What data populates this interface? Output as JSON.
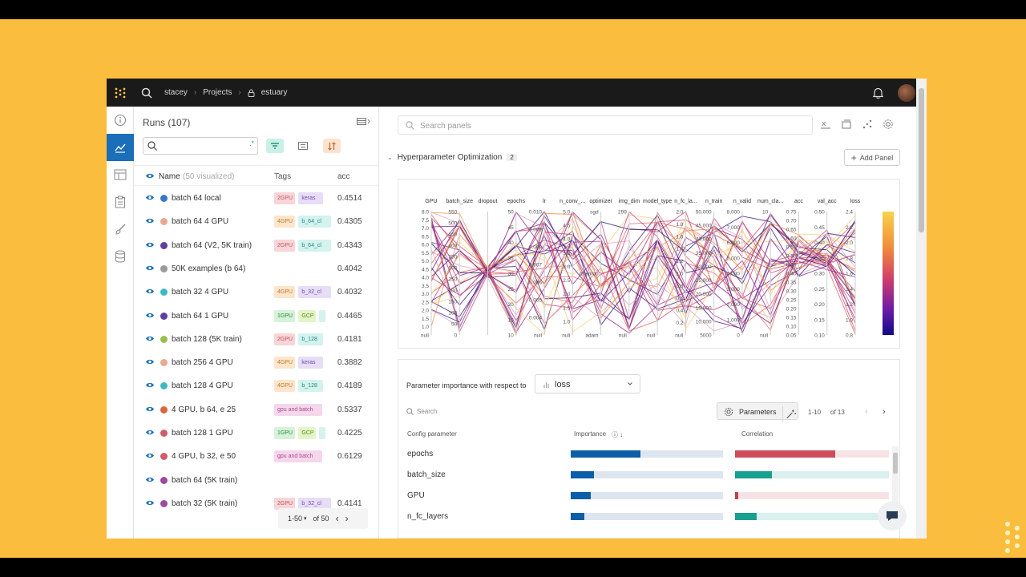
{
  "nav": {
    "crumbs": [
      "stacey",
      "Projects",
      "estuary"
    ],
    "logo_icon": "wandb-dots-icon",
    "accent": "#1b6fb8"
  },
  "sidebar": {
    "items": [
      {
        "icon": "info-icon",
        "active": false
      },
      {
        "icon": "line-chart-icon",
        "active": true
      },
      {
        "icon": "table-icon",
        "active": false
      },
      {
        "icon": "clipboard-icon",
        "active": false
      },
      {
        "icon": "brush-icon",
        "active": false
      },
      {
        "icon": "database-icon",
        "active": false
      }
    ]
  },
  "runs": {
    "title": "Runs (107)",
    "search_placeholder": "",
    "regex_label": ".*",
    "columns": {
      "name": "Name",
      "visualized": "(50 visualized)",
      "tags": "Tags",
      "acc": "acc"
    },
    "rows": [
      {
        "name": "batch 64 local",
        "color": "#3a78c4",
        "tags": [
          {
            "t": "2GPU",
            "bg": "#f7d5d8",
            "fg": "#c05663"
          },
          {
            "t": "keras",
            "bg": "#e7ddf5",
            "fg": "#6f4bb0"
          }
        ],
        "acc": "0.4514"
      },
      {
        "name": "batch 64 4 GPU",
        "color": "#e8a98f",
        "tags": [
          {
            "t": "4GPU",
            "bg": "#fde5cc",
            "fg": "#c07a2a"
          },
          {
            "t": "b_64_cl",
            "bg": "#d4f2ee",
            "fg": "#1c8c7c"
          }
        ],
        "acc": "0.4305"
      },
      {
        "name": "batch 64 (V2, 5K train)",
        "color": "#5e3f9c",
        "tags": [
          {
            "t": "2GPU",
            "bg": "#f7d5d8",
            "fg": "#c05663"
          },
          {
            "t": "b_64_cl",
            "bg": "#d4f2ee",
            "fg": "#1c8c7c"
          }
        ],
        "acc": "0.4343"
      },
      {
        "name": "50K examples (b 64)",
        "color": "#9a9a9a",
        "tags": [],
        "acc": "0.4042"
      },
      {
        "name": "batch 32 4 GPU",
        "color": "#3db9c4",
        "tags": [
          {
            "t": "4GPU",
            "bg": "#fde5cc",
            "fg": "#c07a2a"
          },
          {
            "t": "b_32_cl",
            "bg": "#e7ddf5",
            "fg": "#6f4bb0"
          }
        ],
        "acc": "0.4032"
      },
      {
        "name": "batch 64 1 GPU",
        "color": "#5e3f9c",
        "tags": [
          {
            "t": "1GPU",
            "bg": "#d6f2d9",
            "fg": "#2f8a3b"
          },
          {
            "t": "GCP",
            "bg": "#e3f5c8",
            "fg": "#5e8a1f"
          },
          {
            "t": "",
            "bg": "#d4f2ee",
            "fg": "#1c8c7c"
          }
        ],
        "acc": "0.4465"
      },
      {
        "name": "batch 128 (5K train)",
        "color": "#97c050",
        "tags": [
          {
            "t": "2GPU",
            "bg": "#f7d5d8",
            "fg": "#c05663"
          },
          {
            "t": "b_128",
            "bg": "#d4f2ee",
            "fg": "#1c8c7c"
          }
        ],
        "acc": "0.4181"
      },
      {
        "name": "batch 256 4 GPU",
        "color": "#e8a98f",
        "tags": [
          {
            "t": "4GPU",
            "bg": "#fde5cc",
            "fg": "#c07a2a"
          },
          {
            "t": "keras",
            "bg": "#e7ddf5",
            "fg": "#6f4bb0"
          }
        ],
        "acc": "0.3882"
      },
      {
        "name": "batch 128 4 GPU",
        "color": "#3db9c4",
        "tags": [
          {
            "t": "4GPU",
            "bg": "#fde5cc",
            "fg": "#c07a2a"
          },
          {
            "t": "b_128",
            "bg": "#d4f2ee",
            "fg": "#1c8c7c"
          }
        ],
        "acc": "0.4189"
      },
      {
        "name": "4 GPU, b 64, e 25",
        "color": "#d9653b",
        "tags": [
          {
            "t": "gpu and batch",
            "bg": "#f5d7ec",
            "fg": "#b0478f"
          }
        ],
        "acc": "0.5337"
      },
      {
        "name": "batch 128 1 GPU",
        "color": "#cf5d6b",
        "tags": [
          {
            "t": "1GPU",
            "bg": "#d6f2d9",
            "fg": "#2f8a3b"
          },
          {
            "t": "GCP",
            "bg": "#e3f5c8",
            "fg": "#5e8a1f"
          },
          {
            "t": "",
            "bg": "#d4f2ee",
            "fg": "#1c8c7c"
          }
        ],
        "acc": "0.4225"
      },
      {
        "name": "4 GPU, b 32, e 50",
        "color": "#cf5d6b",
        "tags": [
          {
            "t": "gpu and batch",
            "bg": "#f5d7ec",
            "fg": "#b0478f"
          }
        ],
        "acc": "0.6129"
      },
      {
        "name": "batch 64 (5K train)",
        "color": "#9b4aa0",
        "tags": [],
        "acc": ""
      },
      {
        "name": "batch 32 (5K train)",
        "color": "#9b4aa0",
        "tags": [
          {
            "t": "2GPU",
            "bg": "#f7d5d8",
            "fg": "#c05663"
          },
          {
            "t": "b_32_cl",
            "bg": "#e7ddf5",
            "fg": "#6f4bb0"
          }
        ],
        "acc": "0.4141"
      }
    ],
    "pager": {
      "range": "1-50",
      "of": "of 50"
    }
  },
  "panels": {
    "search_placeholder": "Search panels",
    "section_title": "Hyperparameter Optimization",
    "section_count": "2",
    "add_panel": "Add Panel"
  },
  "chart_data": {
    "type": "parallel_coordinates",
    "axes": [
      {
        "label": "GPU",
        "ticks": [
          "8.0",
          "7.5",
          "7.0",
          "6.5",
          "6.0",
          "5.5",
          "5.0",
          "4.5",
          "4.0",
          "3.5",
          "3.0",
          "2.5",
          "2.0",
          "1.5",
          "1.0",
          "null"
        ]
      },
      {
        "label": "batch_size",
        "ticks": [
          "550",
          "500",
          "450",
          "400",
          "350",
          "300",
          "250",
          "200",
          "150",
          "100",
          "50",
          "0"
        ]
      },
      {
        "label": "dropout",
        "ticks": []
      },
      {
        "label": "epochs",
        "ticks": [
          "50",
          "45",
          "40",
          "35",
          "30",
          "25",
          "20",
          "15",
          "10"
        ]
      },
      {
        "label": "lr",
        "ticks": [
          "0.010",
          "0.009",
          "0.008",
          "0.007",
          "0.006",
          "0.005",
          "0.004",
          "null"
        ]
      },
      {
        "label": "n_conv_...",
        "ticks": [
          "5.0",
          "4.5",
          "4.0",
          "3.5",
          "3.0",
          "2.5",
          "2.0",
          "1.5",
          "1.0",
          "null"
        ]
      },
      {
        "label": "optimizer",
        "ticks": [
          "sgd",
          "rmsprop",
          "adam"
        ]
      },
      {
        "label": "img_dim",
        "ticks": [
          "299",
          "null"
        ]
      },
      {
        "label": "model_type",
        "ticks": [
          "null"
        ]
      },
      {
        "label": "n_fc_la...",
        "ticks": [
          "2.0",
          "1.8",
          "1.6",
          "1.4",
          "1.2",
          "1.0",
          "0.8",
          "0.6",
          "0.4",
          "0.2",
          "null"
        ]
      },
      {
        "label": "n_train",
        "ticks": [
          "50,000",
          "45,000",
          "40,000",
          "35,000",
          "30,000",
          "25,000",
          "20,000",
          "15,000",
          "10,000",
          "5000"
        ]
      },
      {
        "label": "n_valid",
        "ticks": [
          "8,000",
          "7,000",
          "6,000",
          "5,000",
          "4,000",
          "3,000",
          "2,000",
          "1,000",
          "0"
        ]
      },
      {
        "label": "num_cla...",
        "ticks": [
          "10",
          "null"
        ]
      },
      {
        "label": "acc",
        "ticks": [
          "0.75",
          "0.70",
          "0.65",
          "0.60",
          "0.55",
          "0.50",
          "0.45",
          "0.40",
          "0.35",
          "0.30",
          "0.25",
          "0.20",
          "0.15",
          "0.10",
          "0.05"
        ]
      },
      {
        "label": "val_acc",
        "ticks": [
          "0.50",
          "0.45",
          "0.40",
          "0.35",
          "0.30",
          "0.25",
          "0.20",
          "0.15",
          "0.10"
        ]
      },
      {
        "label": "loss",
        "ticks": [
          "2.4",
          "2.2",
          "2.0",
          "1.8",
          "1.6",
          "1.4",
          "1.2",
          "1.0",
          "0.8"
        ]
      }
    ],
    "colorbar": {
      "metric": "loss",
      "min": 0.8,
      "max": 2.4
    }
  },
  "importance": {
    "title": "Parameter importance with respect to",
    "metric": "loss",
    "search_placeholder": "Search",
    "params_button": "Parameters",
    "pager_range": "1-10",
    "pager_of": "of 13",
    "columns": {
      "param": "Config parameter",
      "importance": "Importance",
      "correlation": "Correlation"
    },
    "rows": [
      {
        "param": "epochs",
        "importance": 0.46,
        "correlation": 0.65,
        "corr_color": "#cf4b5c"
      },
      {
        "param": "batch_size",
        "importance": 0.15,
        "correlation": 0.24,
        "corr_color": "#17a08e"
      },
      {
        "param": "GPU",
        "importance": 0.13,
        "correlation": 0.02,
        "corr_color": "#b8444f"
      },
      {
        "param": "n_fc_layers",
        "importance": 0.09,
        "correlation": 0.14,
        "corr_color": "#17a08e"
      }
    ]
  }
}
